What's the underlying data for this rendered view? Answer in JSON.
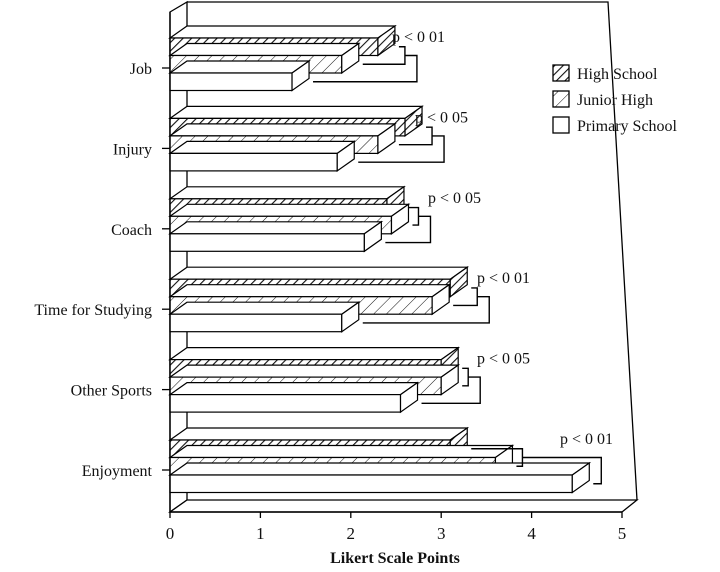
{
  "chart_data": {
    "type": "bar",
    "orientation": "horizontal",
    "categories": [
      "Job",
      "Injury",
      "Coach",
      "Time for Studying",
      "Other Sports",
      "Enjoyment"
    ],
    "series": [
      {
        "name": "High School",
        "values": [
          2.3,
          2.6,
          2.4,
          3.1,
          3.0,
          3.1
        ],
        "pattern": "dense-hatch"
      },
      {
        "name": "Junior High",
        "values": [
          1.9,
          2.3,
          2.45,
          2.9,
          3.0,
          3.6
        ],
        "pattern": "sparse-hatch"
      },
      {
        "name": "Primary School",
        "values": [
          1.35,
          1.85,
          2.15,
          1.9,
          2.55,
          4.45
        ],
        "pattern": "none"
      }
    ],
    "annotations": [
      "p < 0 01",
      "p < 0 05",
      "p < 0 05",
      "p < 0 01",
      "p < 0 05",
      "p < 0 01"
    ],
    "xlabel": "Likert Scale Points",
    "ylabel": "",
    "xlim": [
      0,
      5
    ],
    "xticks": [
      "0",
      "1",
      "2",
      "3",
      "4",
      "5"
    ],
    "legend_position": "top-right",
    "legend": [
      "High School",
      "Junior High",
      "Primary School"
    ],
    "grid": false,
    "style": "3d"
  }
}
